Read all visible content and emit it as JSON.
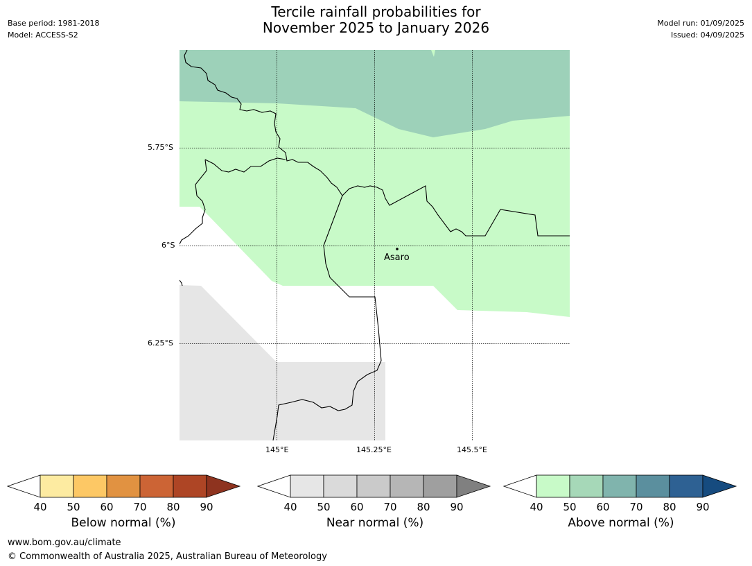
{
  "header": {
    "title_line1": "Tercile rainfall probabilities for",
    "title_line2": "November 2025 to January 2026",
    "base_period": "Base period: 1981-2018",
    "model": "Model: ACCESS-S2",
    "model_run": "Model run: 01/09/2025",
    "issued": "Issued: 04/09/2025"
  },
  "map": {
    "lat_labels": [
      "5.75°S",
      "6°S",
      "6.25°S"
    ],
    "lon_labels": [
      "145°E",
      "145.25°E",
      "145.5°E"
    ],
    "place_label": "Asaro",
    "colors": {
      "above_40_50": "#c8fac8",
      "above_50_60": "#9dd1b9",
      "near_40_50": "#e6e6e6"
    }
  },
  "legends": [
    {
      "title": "Below normal (%)",
      "ticks": [
        "40",
        "50",
        "60",
        "70",
        "80",
        "90"
      ],
      "colors": [
        "#fdeba1",
        "#fdc865",
        "#e19241",
        "#cc6435",
        "#ae4525",
        "#8e331f"
      ]
    },
    {
      "title": "Near normal (%)",
      "ticks": [
        "40",
        "50",
        "60",
        "70",
        "80",
        "90"
      ],
      "colors": [
        "#e6e6e6",
        "#dadada",
        "#cacaca",
        "#b6b6b6",
        "#9f9f9f",
        "#808080"
      ]
    },
    {
      "title": "Above normal (%)",
      "ticks": [
        "40",
        "50",
        "60",
        "70",
        "80",
        "90"
      ],
      "colors": [
        "#c8fac8",
        "#a6d8b8",
        "#80b4ad",
        "#5b8f9e",
        "#2e6193",
        "#164b7f"
      ]
    }
  ],
  "footer": {
    "url": "www.bom.gov.au/climate",
    "copyright": "© Commonwealth of Australia 2025, Australian Bureau of Meteorology"
  }
}
